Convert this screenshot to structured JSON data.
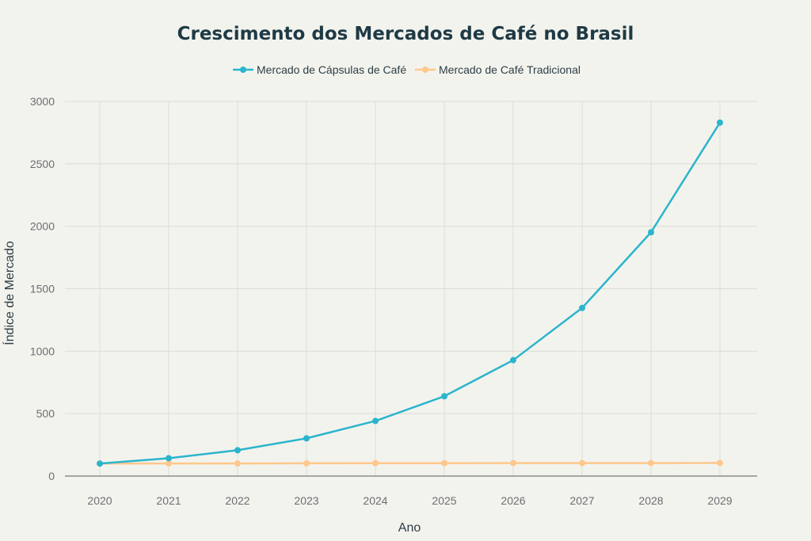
{
  "chart_data": {
    "type": "line",
    "title": "Crescimento dos Mercados de Café no Brasil",
    "xlabel": "Ano",
    "ylabel": "Índice de Mercado",
    "x": [
      "2020",
      "2021",
      "2022",
      "2023",
      "2024",
      "2025",
      "2026",
      "2027",
      "2028",
      "2029"
    ],
    "ylim": [
      0,
      3000
    ],
    "yticks": [
      "0",
      "500",
      "1000",
      "1500",
      "2000",
      "2500",
      "3000"
    ],
    "grid": true,
    "legend_position": "top-center",
    "series": [
      {
        "name": "Mercado de Cápsulas de Café",
        "color": "#2bb5cc",
        "values": [
          100,
          143,
          207,
          302,
          441,
          639,
          928,
          1346,
          1952,
          2830
        ]
      },
      {
        "name": "Mercado de Café Tradicional",
        "color": "#fdc88c",
        "values": [
          100,
          101,
          101,
          102,
          103,
          103,
          104,
          104,
          104,
          105
        ]
      }
    ]
  }
}
